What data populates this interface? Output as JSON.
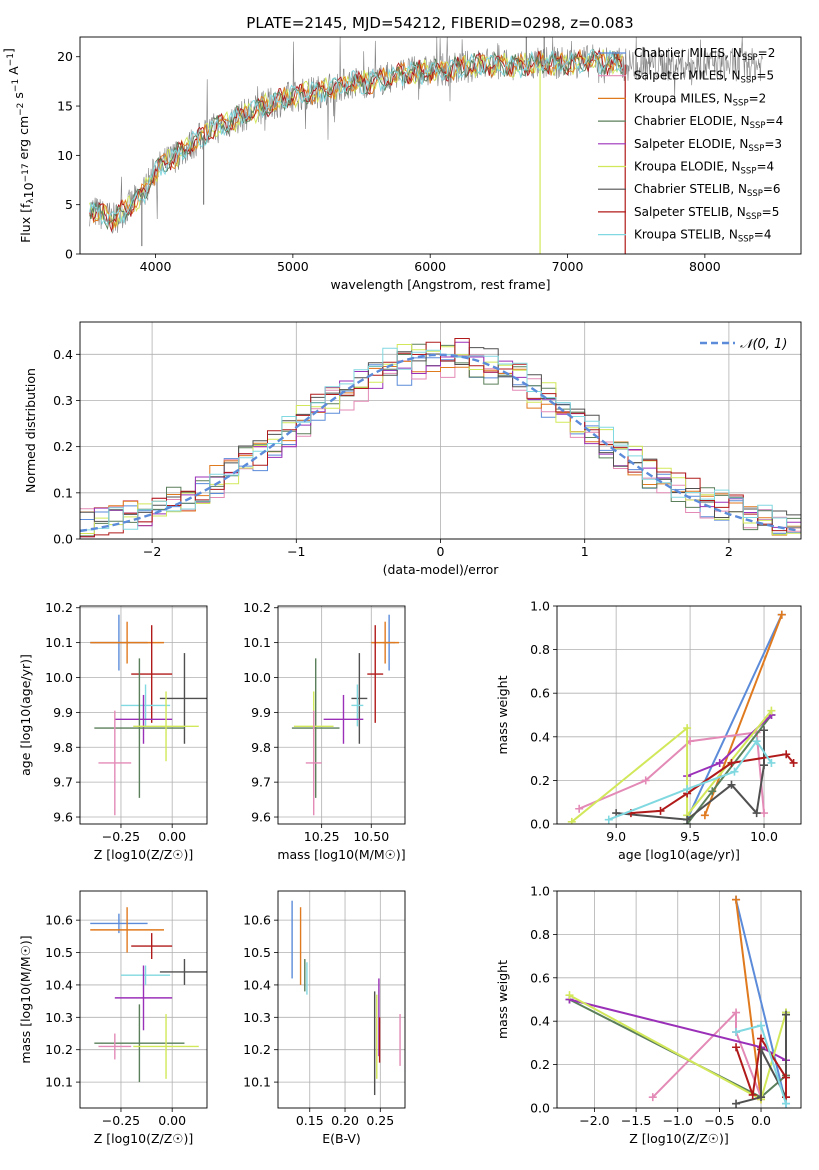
{
  "figure_title": "PLATE=2145, MJD=54212, FIBERID=0298, z=0.083",
  "colors": {
    "chabrier_miles": "#5b8bd9",
    "salpeter_miles": "#e38ab6",
    "kroupa_miles": "#e07a1f",
    "chabrier_elodie": "#5a7f5a",
    "salpeter_elodie": "#9b30b8",
    "kroupa_elodie": "#d2e85a",
    "chabrier_stelib": "#505050",
    "salpeter_stelib": "#b01a1a",
    "kroupa_stelib": "#80d8e0",
    "spectrum_data": "#7f7f7f"
  },
  "chart_data": [
    {
      "id": "spectrum",
      "type": "line",
      "title": "PLATE=2145, MJD=54212, FIBERID=0298, z=0.083",
      "xlabel": "wavelength [Angstrom, rest frame]",
      "ylabel": "Flux [f_λ 10^-17 erg cm^-2 s^-1 A^-1]",
      "xlim": [
        3450,
        8700
      ],
      "ylim": [
        0,
        22
      ],
      "xticks": [
        "4000",
        "5000",
        "6000",
        "7000",
        "8000"
      ],
      "yticks": [
        "0",
        "5",
        "10",
        "15",
        "20"
      ],
      "grid": false,
      "legend_position": "upper-right",
      "legend": [
        {
          "label": "Chabrier MILES, N",
          "sub": "SSP",
          "tail": "=2",
          "color_key": "chabrier_miles"
        },
        {
          "label": "Salpeter MILES, N",
          "sub": "SSP",
          "tail": "=5",
          "color_key": "salpeter_miles"
        },
        {
          "label": "Kroupa MILES, N",
          "sub": "SSP",
          "tail": "=2",
          "color_key": "kroupa_miles"
        },
        {
          "label": "Chabrier ELODIE, N",
          "sub": "SSP",
          "tail": "=4",
          "color_key": "chabrier_elodie"
        },
        {
          "label": "Salpeter ELODIE, N",
          "sub": "SSP",
          "tail": "=3",
          "color_key": "salpeter_elodie"
        },
        {
          "label": "Kroupa ELODIE, N",
          "sub": "SSP",
          "tail": "=4",
          "color_key": "kroupa_elodie"
        },
        {
          "label": "Chabrier STELIB, N",
          "sub": "SSP",
          "tail": "=6",
          "color_key": "chabrier_stelib"
        },
        {
          "label": "Salpeter STELIB, N",
          "sub": "SSP",
          "tail": "=5",
          "color_key": "salpeter_stelib"
        },
        {
          "label": "Kroupa STELIB, N",
          "sub": "SSP",
          "tail": "=4",
          "color_key": "kroupa_stelib"
        }
      ],
      "continuum": {
        "x": [
          3520,
          3700,
          3900,
          4000,
          4200,
          4400,
          4600,
          4800,
          5000,
          5200,
          5400,
          5600,
          5800,
          6000,
          6200,
          6400,
          6600,
          6800,
          7000,
          7200,
          7400
        ],
        "y": [
          4.5,
          3.5,
          6.0,
          8.5,
          10.5,
          12.5,
          13.8,
          15.0,
          16.0,
          16.5,
          17.3,
          17.5,
          18.3,
          18.5,
          18.8,
          19.3,
          19.0,
          19.3,
          19.4,
          19.6,
          19.2
        ]
      },
      "features": [
        {
          "x": 6800,
          "y": 0.0,
          "color_key": "kroupa_elodie"
        },
        {
          "x": 7420,
          "y": 0.0,
          "color_key": "salpeter_stelib"
        },
        {
          "x": 3900,
          "y": 0.8,
          "color_key": "spectrum_data"
        },
        {
          "x": 4350,
          "y": 5.0,
          "color_key": "spectrum_data"
        },
        {
          "x": 6700,
          "y": 22.0,
          "color_key": "spectrum_data"
        },
        {
          "x": 6830,
          "y": 22.0,
          "color_key": "spectrum_data"
        },
        {
          "x": 7550,
          "y": 21.0,
          "color_key": "spectrum_data"
        }
      ]
    },
    {
      "id": "residuals",
      "type": "histogram",
      "xlabel": "(data-model)/error",
      "ylabel": "Normed distribution",
      "xlim": [
        -2.5,
        2.5
      ],
      "ylim": [
        0,
        0.47
      ],
      "xticks": [
        "−2",
        "−1",
        "0",
        "1",
        "2"
      ],
      "yticks": [
        "0.0",
        "0.1",
        "0.2",
        "0.3",
        "0.4"
      ],
      "grid": true,
      "legend_position": "upper-right",
      "legend": [
        {
          "label": "𝒩(0, 1)",
          "color_key": "chabrier_miles",
          "style": "dashed"
        }
      ],
      "gaussian": {
        "mean": 0,
        "sigma": 1
      }
    },
    {
      "id": "age-vs-Z",
      "type": "errorbar",
      "xlabel": "Z [log10(Z/Z☉)]",
      "ylabel": "age  [log10(age/yr)]",
      "xlim": [
        -0.45,
        0.17
      ],
      "ylim": [
        9.58,
        10.205
      ],
      "xticks": [
        "−0.25",
        "0.00"
      ],
      "yticks": [
        "9.6",
        "9.7",
        "9.8",
        "9.9",
        "10.0",
        "10.1",
        "10.2"
      ],
      "grid": true,
      "points": [
        {
          "color_key": "chabrier_miles",
          "x": -0.26,
          "xerr": 0.14,
          "y": 10.1,
          "yerr": 0.08
        },
        {
          "color_key": "kroupa_miles",
          "x": -0.22,
          "xerr": 0.18,
          "y": 10.1,
          "yerr": 0.06
        },
        {
          "color_key": "salpeter_stelib",
          "x": -0.1,
          "xerr": 0.1,
          "y": 10.01,
          "yerr": 0.14
        },
        {
          "color_key": "chabrier_stelib",
          "x": 0.06,
          "xerr": 0.12,
          "y": 9.94,
          "yerr": 0.13
        },
        {
          "color_key": "kroupa_stelib",
          "x": -0.13,
          "xerr": 0.12,
          "y": 9.92,
          "yerr": 0.06
        },
        {
          "color_key": "salpeter_elodie",
          "x": -0.14,
          "xerr": 0.14,
          "y": 9.88,
          "yerr": 0.07
        },
        {
          "color_key": "chabrier_elodie",
          "x": -0.16,
          "xerr": 0.22,
          "y": 9.855,
          "yerr": 0.2
        },
        {
          "color_key": "kroupa_elodie",
          "x": -0.03,
          "xerr": 0.16,
          "y": 9.86,
          "yerr": 0.1
        },
        {
          "color_key": "salpeter_miles",
          "x": -0.28,
          "xerr": 0.08,
          "y": 9.755,
          "yerr": 0.15
        }
      ]
    },
    {
      "id": "age-vs-mass",
      "type": "errorbar",
      "xlabel": "mass [log10(M/M☉)]",
      "ylabel": "",
      "xlim": [
        10.03,
        10.67
      ],
      "ylim": [
        9.58,
        10.205
      ],
      "xticks": [
        "10.25",
        "10.50"
      ],
      "yticks": [
        "9.6",
        "9.7",
        "9.8",
        "9.9",
        "10.0",
        "10.1",
        "10.2"
      ],
      "grid": true,
      "points": [
        {
          "color_key": "chabrier_miles",
          "x": 10.59,
          "xerr": 0.03,
          "y": 10.1,
          "yerr": 0.08
        },
        {
          "color_key": "kroupa_miles",
          "x": 10.57,
          "xerr": 0.07,
          "y": 10.1,
          "yerr": 0.06
        },
        {
          "color_key": "salpeter_stelib",
          "x": 10.52,
          "xerr": 0.04,
          "y": 10.01,
          "yerr": 0.14
        },
        {
          "color_key": "chabrier_stelib",
          "x": 10.44,
          "xerr": 0.04,
          "y": 9.94,
          "yerr": 0.13
        },
        {
          "color_key": "kroupa_stelib",
          "x": 10.43,
          "xerr": 0.03,
          "y": 9.92,
          "yerr": 0.06
        },
        {
          "color_key": "salpeter_elodie",
          "x": 10.36,
          "xerr": 0.1,
          "y": 9.88,
          "yerr": 0.07
        },
        {
          "color_key": "chabrier_elodie",
          "x": 10.22,
          "xerr": 0.12,
          "y": 9.855,
          "yerr": 0.2
        },
        {
          "color_key": "kroupa_elodie",
          "x": 10.21,
          "xerr": 0.1,
          "y": 9.86,
          "yerr": 0.1
        },
        {
          "color_key": "salpeter_miles",
          "x": 10.21,
          "xerr": 0.04,
          "y": 9.755,
          "yerr": 0.15
        }
      ]
    },
    {
      "id": "weight-vs-age",
      "type": "line",
      "xlabel": "age  [log10(age/yr)]",
      "ylabel": "mass weight",
      "xlim": [
        8.6,
        10.25
      ],
      "ylim": [
        0,
        1.0
      ],
      "xticks": [
        "9.0",
        "9.5",
        "10.0"
      ],
      "yticks": [
        "0.0",
        "0.2",
        "0.4",
        "0.6",
        "0.8",
        "1.0"
      ],
      "grid": true,
      "series": [
        {
          "color_key": "chabrier_miles",
          "x": [
            9.48,
            10.12
          ],
          "y": [
            0.02,
            0.96
          ]
        },
        {
          "color_key": "kroupa_miles",
          "x": [
            9.6,
            10.12
          ],
          "y": [
            0.04,
            0.96
          ]
        },
        {
          "color_key": "salpeter_miles",
          "x": [
            8.75,
            9.2,
            9.5,
            9.95,
            10.0
          ],
          "y": [
            0.07,
            0.2,
            0.38,
            0.42,
            0.05
          ]
        },
        {
          "color_key": "chabrier_elodie",
          "x": [
            9.48,
            9.65,
            10.05
          ],
          "y": [
            0.0,
            0.15,
            0.5
          ]
        },
        {
          "color_key": "salpeter_elodie",
          "x": [
            9.48,
            9.7,
            10.05
          ],
          "y": [
            0.22,
            0.28,
            0.5
          ]
        },
        {
          "color_key": "kroupa_elodie",
          "x": [
            8.7,
            9.48,
            9.48,
            10.05
          ],
          "y": [
            0.01,
            0.44,
            0.04,
            0.52
          ]
        },
        {
          "color_key": "chabrier_stelib",
          "x": [
            9.0,
            9.48,
            9.78,
            9.95,
            10.0,
            10.0
          ],
          "y": [
            0.05,
            0.02,
            0.18,
            0.05,
            0.27,
            0.43
          ]
        },
        {
          "color_key": "salpeter_stelib",
          "x": [
            9.1,
            9.3,
            9.48,
            9.78,
            10.15,
            10.2
          ],
          "y": [
            0.05,
            0.06,
            0.14,
            0.28,
            0.32,
            0.28
          ]
        },
        {
          "color_key": "kroupa_stelib",
          "x": [
            8.95,
            9.48,
            9.8,
            9.95,
            10.05
          ],
          "y": [
            0.02,
            0.16,
            0.24,
            0.38,
            0.28
          ]
        }
      ]
    },
    {
      "id": "mass-vs-Z",
      "type": "errorbar",
      "xlabel": "Z [log10(Z/Z☉)]",
      "ylabel": "mass [log10(M/M☉)]",
      "xlim": [
        -0.45,
        0.17
      ],
      "ylim": [
        10.02,
        10.69
      ],
      "xticks": [
        "−0.25",
        "0.00"
      ],
      "yticks": [
        "10.1",
        "10.2",
        "10.3",
        "10.4",
        "10.5",
        "10.6"
      ],
      "grid": true,
      "points": [
        {
          "color_key": "chabrier_miles",
          "x": -0.26,
          "xerr": 0.14,
          "y": 10.59,
          "yerr": 0.03
        },
        {
          "color_key": "kroupa_miles",
          "x": -0.22,
          "xerr": 0.18,
          "y": 10.57,
          "yerr": 0.07
        },
        {
          "color_key": "salpeter_stelib",
          "x": -0.1,
          "xerr": 0.1,
          "y": 10.52,
          "yerr": 0.04
        },
        {
          "color_key": "chabrier_stelib",
          "x": 0.06,
          "xerr": 0.12,
          "y": 10.44,
          "yerr": 0.04
        },
        {
          "color_key": "kroupa_stelib",
          "x": -0.13,
          "xerr": 0.12,
          "y": 10.43,
          "yerr": 0.03
        },
        {
          "color_key": "salpeter_elodie",
          "x": -0.14,
          "xerr": 0.14,
          "y": 10.36,
          "yerr": 0.1
        },
        {
          "color_key": "chabrier_elodie",
          "x": -0.16,
          "xerr": 0.22,
          "y": 10.22,
          "yerr": 0.12
        },
        {
          "color_key": "kroupa_elodie",
          "x": -0.03,
          "xerr": 0.16,
          "y": 10.21,
          "yerr": 0.1
        },
        {
          "color_key": "salpeter_miles",
          "x": -0.28,
          "xerr": 0.08,
          "y": 10.21,
          "yerr": 0.04
        }
      ]
    },
    {
      "id": "mass-vs-ebv",
      "type": "errorbar",
      "xlabel": "E(B-V)",
      "ylabel": "",
      "xlim": [
        0.105,
        0.285
      ],
      "ylim": [
        10.02,
        10.69
      ],
      "xticks": [
        "0.15",
        "0.20",
        "0.25"
      ],
      "yticks": [
        "10.1",
        "10.2",
        "10.3",
        "10.4",
        "10.5",
        "10.6"
      ],
      "grid": true,
      "points": [
        {
          "color_key": "chabrier_miles",
          "x": 0.125,
          "xerr": 0,
          "y": 10.54,
          "yerr": 0.12
        },
        {
          "color_key": "kroupa_miles",
          "x": 0.137,
          "xerr": 0,
          "y": 10.52,
          "yerr": 0.12
        },
        {
          "color_key": "chabrier_elodie",
          "x": 0.143,
          "xerr": 0,
          "y": 10.43,
          "yerr": 0.05
        },
        {
          "color_key": "kroupa_stelib",
          "x": 0.146,
          "xerr": 0,
          "y": 10.42,
          "yerr": 0.05
        },
        {
          "color_key": "chabrier_stelib",
          "x": 0.242,
          "xerr": 0,
          "y": 10.22,
          "yerr": 0.16
        },
        {
          "color_key": "kroupa_elodie",
          "x": 0.245,
          "xerr": 0,
          "y": 10.24,
          "yerr": 0.13
        },
        {
          "color_key": "salpeter_elodie",
          "x": 0.248,
          "xerr": 0,
          "y": 10.3,
          "yerr": 0.12
        },
        {
          "color_key": "salpeter_stelib",
          "x": 0.249,
          "xerr": 0,
          "y": 10.23,
          "yerr": 0.07
        },
        {
          "color_key": "salpeter_miles",
          "x": 0.278,
          "xerr": 0,
          "y": 10.23,
          "yerr": 0.08
        }
      ]
    },
    {
      "id": "weight-vs-Z",
      "type": "line",
      "xlabel": "Z [log10(Z/Z☉)]",
      "ylabel": "mass weight",
      "xlim": [
        -2.45,
        0.48
      ],
      "ylim": [
        0,
        1.0
      ],
      "xticks": [
        "−2.0",
        "−1.5",
        "−1.0",
        "−0.5",
        "0.0"
      ],
      "yticks": [
        "0.0",
        "0.2",
        "0.4",
        "0.6",
        "0.8",
        "1.0"
      ],
      "grid": true,
      "series": [
        {
          "color_key": "chabrier_miles",
          "x": [
            -0.3,
            0.3
          ],
          "y": [
            0.96,
            0.02
          ]
        },
        {
          "color_key": "kroupa_miles",
          "x": [
            -0.3,
            0.0
          ],
          "y": [
            0.96,
            0.04
          ]
        },
        {
          "color_key": "salpeter_miles",
          "x": [
            -1.3,
            -0.3,
            -0.3,
            0.0
          ],
          "y": [
            0.05,
            0.44,
            0.35,
            0.05
          ]
        },
        {
          "color_key": "chabrier_elodie",
          "x": [
            -2.3,
            0.0,
            0.3,
            0.3
          ],
          "y": [
            0.5,
            0.05,
            0.15,
            0.44
          ]
        },
        {
          "color_key": "salpeter_elodie",
          "x": [
            -2.3,
            0.0,
            0.3
          ],
          "y": [
            0.5,
            0.28,
            0.22
          ]
        },
        {
          "color_key": "kroupa_elodie",
          "x": [
            -2.3,
            0.0,
            0.3
          ],
          "y": [
            0.52,
            0.04,
            0.44
          ]
        },
        {
          "color_key": "chabrier_stelib",
          "x": [
            -0.3,
            0.0,
            0.0,
            0.3,
            0.3
          ],
          "y": [
            0.02,
            0.05,
            0.27,
            0.05,
            0.43
          ]
        },
        {
          "color_key": "salpeter_stelib",
          "x": [
            -0.3,
            -0.1,
            0.0,
            0.3,
            0.3
          ],
          "y": [
            0.28,
            0.06,
            0.32,
            0.14,
            0.05
          ]
        },
        {
          "color_key": "kroupa_stelib",
          "x": [
            -0.3,
            0.0,
            0.3
          ],
          "y": [
            0.35,
            0.38,
            0.02
          ]
        }
      ]
    }
  ]
}
